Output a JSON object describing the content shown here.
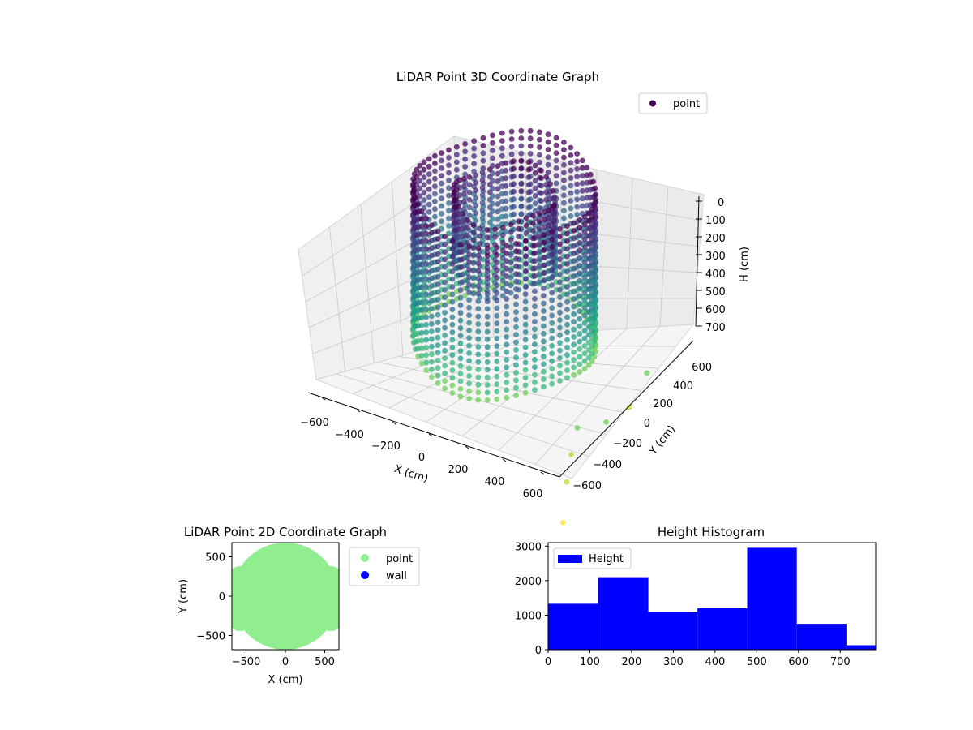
{
  "colors": {
    "viridis": [
      "#440154",
      "#482777",
      "#3e4989",
      "#31688e",
      "#26828e",
      "#1f9e89",
      "#35b779",
      "#6ece58",
      "#b5de2b",
      "#fde725"
    ],
    "point2d": "#90ee90",
    "wall": "#0000ff",
    "histogram": "#0000ff",
    "pane": "#f2f2f2"
  },
  "chart_data": [
    {
      "type": "scatter",
      "title": "LiDAR Point 3D Coordinate Graph",
      "xlabel": "X (cm)",
      "ylabel": "Y (cm)",
      "zlabel": "H (cm)",
      "legend": {
        "placement": "top-right",
        "entries": [
          "point"
        ]
      },
      "x_ticks": [
        "−600",
        "−400",
        "−200",
        "0",
        "200",
        "400",
        "600"
      ],
      "y_ticks": [
        "−600",
        "−400",
        "−200",
        "0",
        "200",
        "400",
        "600"
      ],
      "z_ticks": [
        "0",
        "100",
        "200",
        "300",
        "400",
        "500",
        "600",
        "700"
      ],
      "xlim": [
        -700,
        700
      ],
      "ylim": [
        -700,
        700
      ],
      "zlim": [
        0,
        780
      ],
      "z_inverted": true,
      "grid": true,
      "series": [
        {
          "name": "point",
          "note": "points shown in rings of vertical columns; color maps to height via viridis",
          "rings": [
            {
              "radius": 450,
              "z_top": 40,
              "z_bottom": 560
            },
            {
              "radius": 250,
              "z_top": 60,
              "z_bottom": 300
            }
          ],
          "outliers": [
            {
              "x": 600,
              "y": -350,
              "z": 600
            },
            {
              "x": 620,
              "y": -450,
              "z": 650
            },
            {
              "x": 650,
              "y": -550,
              "z": 700
            },
            {
              "x": 700,
              "y": -680,
              "z": 780
            },
            {
              "x": 680,
              "y": -200,
              "z": 620
            },
            {
              "x": 700,
              "y": 0,
              "z": 640
            },
            {
              "x": 690,
              "y": 200,
              "z": 600
            }
          ]
        }
      ]
    },
    {
      "type": "scatter",
      "title": "LiDAR Point 2D Coordinate Graph",
      "xlabel": "X (cm)",
      "ylabel": "Y (cm)",
      "x_ticks": [
        -500,
        0,
        500
      ],
      "y_ticks": [
        -500,
        0,
        500
      ],
      "xlim": [
        -680,
        680
      ],
      "ylim": [
        -680,
        680
      ],
      "legend": {
        "placement": "right",
        "entries": [
          "point",
          "wall"
        ]
      },
      "series": [
        {
          "name": "point",
          "shape": "filled disc of radius ~600 cm with side lobes"
        },
        {
          "name": "wall",
          "values": []
        }
      ]
    },
    {
      "type": "bar",
      "title": "Height Histogram",
      "legend": {
        "placement": "top-left",
        "entries": [
          "Height"
        ]
      },
      "xlim": [
        0,
        785
      ],
      "ylim": [
        0,
        3100
      ],
      "x_ticks": [
        0,
        100,
        200,
        300,
        400,
        500,
        600,
        700
      ],
      "y_ticks": [
        0,
        1000,
        2000,
        3000
      ],
      "bins": [
        {
          "start": 0,
          "end": 120,
          "count": 1330
        },
        {
          "start": 120,
          "end": 240,
          "count": 2100
        },
        {
          "start": 240,
          "end": 358,
          "count": 1080
        },
        {
          "start": 358,
          "end": 477,
          "count": 1200
        },
        {
          "start": 477,
          "end": 596,
          "count": 2950
        },
        {
          "start": 596,
          "end": 715,
          "count": 750
        },
        {
          "start": 715,
          "end": 785,
          "count": 130
        }
      ]
    }
  ]
}
